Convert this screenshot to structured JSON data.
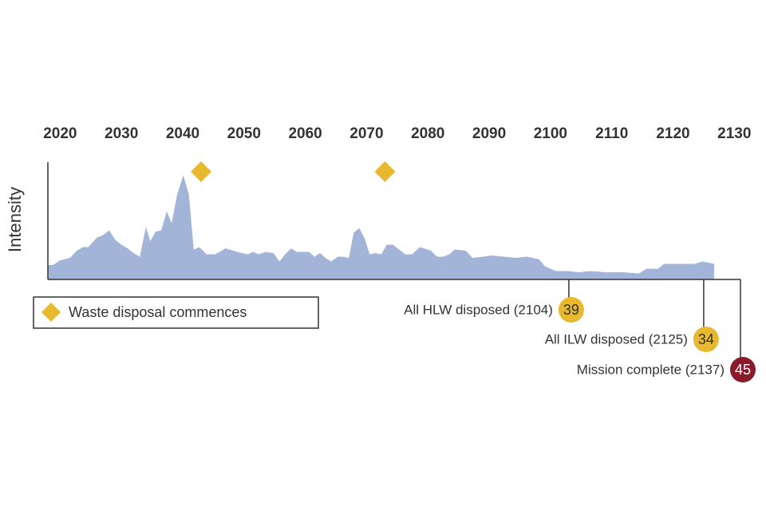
{
  "chart_data": {
    "type": "area",
    "y_label": "Intensity",
    "xlim": [
      2018,
      2131
    ],
    "ylim": [
      0,
      100
    ],
    "xticks": [
      2020,
      2030,
      2040,
      2050,
      2060,
      2070,
      2080,
      2090,
      2100,
      2110,
      2120,
      2130
    ],
    "color": "#a3b4d9",
    "x": [
      2018,
      2018.8,
      2020,
      2021.6,
      2022.7,
      2023.7,
      2024.6,
      2026,
      2027,
      2028,
      2029,
      2030,
      2031,
      2032,
      2033,
      2034,
      2034.7,
      2035.6,
      2036.5,
      2037.4,
      2038.2,
      2039.1,
      2040.1,
      2041,
      2041.8,
      2042.7,
      2043.9,
      2045.3,
      2047,
      2048.9,
      2050.6,
      2051.5,
      2052.4,
      2053.5,
      2054.8,
      2055.8,
      2056.7,
      2057.7,
      2058.6,
      2059.5,
      2060.6,
      2061.5,
      2062.4,
      2063.3,
      2064.2,
      2065.3,
      2066.2,
      2067.1,
      2067.9,
      2068.8,
      2069.7,
      2070.5,
      2071.4,
      2072.4,
      2073.3,
      2074.3,
      2075.3,
      2076.3,
      2077.4,
      2078.7,
      2080.5,
      2081.5,
      2082.5,
      2083.5,
      2084.4,
      2086.2,
      2087.3,
      2089,
      2090.5,
      2092.5,
      2094.3,
      2096.1,
      2098.1,
      2099.1,
      2100.9,
      2102.9,
      2104.6,
      2106.5,
      2109.1,
      2111.8,
      2114.4,
      2115.7,
      2117.6,
      2118.5,
      2120.9,
      2123.5,
      2124.8,
      2126.7
    ],
    "values": [
      12,
      12,
      16,
      18,
      24,
      27,
      27,
      35,
      37,
      41,
      33,
      29,
      26,
      22,
      19,
      44,
      32,
      40,
      41,
      57,
      47,
      71,
      87,
      71,
      25,
      27,
      21,
      21,
      26,
      23,
      21,
      23,
      21,
      23,
      22,
      15,
      21,
      26,
      23,
      23,
      23,
      19,
      22,
      18,
      15,
      19,
      19,
      18,
      39,
      43,
      34,
      21,
      22,
      21,
      29,
      29,
      25,
      21,
      21,
      27,
      24,
      19,
      19,
      21,
      25,
      24,
      18,
      19,
      20,
      19,
      18,
      19,
      17,
      11,
      7,
      7,
      6,
      7,
      6,
      6,
      5,
      9,
      9,
      13,
      13,
      13,
      15,
      13
    ],
    "markers": {
      "name": "Waste disposal commences",
      "color": "#e8b92e",
      "x": [
        2043,
        2073
      ]
    },
    "annotations": [
      {
        "label": "All HLW disposed (2104)",
        "badge": "39",
        "color": "#e8b92e",
        "x": 2103
      },
      {
        "label": "All ILW disposed (2125)",
        "badge": "34",
        "color": "#e8b92e",
        "x": 2125
      },
      {
        "label": "Mission complete (2137)",
        "badge": "45",
        "color": "#8b1a2b",
        "x": 2131
      }
    ]
  }
}
